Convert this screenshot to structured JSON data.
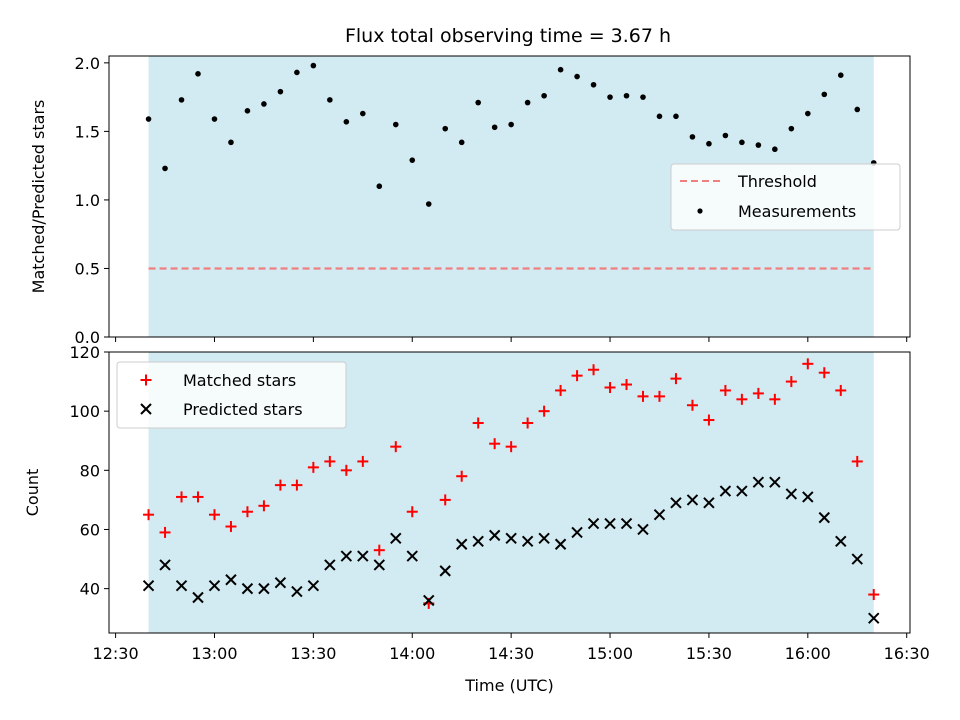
{
  "title": "Flux total observing time = 3.67 h",
  "xlabel": "Time (UTC)",
  "chart_data": [
    {
      "type": "scatter",
      "ylabel": "Matched/Predicted stars",
      "ylim": [
        0,
        2.05
      ],
      "yticks": [
        "0.0",
        "0.5",
        "1.0",
        "1.5",
        "2.0"
      ],
      "ytick_values": [
        0,
        0.5,
        1.0,
        1.5,
        2.0
      ],
      "observing_window": [
        "12:40",
        "16:20"
      ],
      "threshold": 0.5,
      "legend": {
        "placement": "center-right",
        "threshold_label": "Threshold",
        "measurements_label": "Measurements"
      },
      "colors": {
        "threshold": "#f08080",
        "measurements": "#000000",
        "window": "#add8e6"
      },
      "x": [
        "12:40",
        "12:45",
        "12:50",
        "12:55",
        "13:00",
        "13:05",
        "13:10",
        "13:15",
        "13:20",
        "13:25",
        "13:30",
        "13:35",
        "13:40",
        "13:45",
        "13:50",
        "13:55",
        "14:00",
        "14:05",
        "14:10",
        "14:15",
        "14:20",
        "14:25",
        "14:30",
        "14:35",
        "14:40",
        "14:45",
        "14:50",
        "14:55",
        "15:00",
        "15:05",
        "15:10",
        "15:15",
        "15:20",
        "15:25",
        "15:30",
        "15:35",
        "15:40",
        "15:45",
        "15:50",
        "15:55",
        "16:00",
        "16:05",
        "16:10",
        "16:15",
        "16:20"
      ],
      "values": [
        1.59,
        1.23,
        1.73,
        1.92,
        1.59,
        1.42,
        1.65,
        1.7,
        1.79,
        1.93,
        1.98,
        1.73,
        1.57,
        1.63,
        1.1,
        1.55,
        1.29,
        0.97,
        1.52,
        1.42,
        1.71,
        1.53,
        1.55,
        1.71,
        1.76,
        1.95,
        1.9,
        1.84,
        1.75,
        1.76,
        1.75,
        1.61,
        1.61,
        1.46,
        1.41,
        1.47,
        1.42,
        1.4,
        1.37,
        1.52,
        1.63,
        1.77,
        1.91,
        1.66,
        1.27
      ]
    },
    {
      "type": "scatter",
      "ylabel": "Count",
      "ylim": [
        25,
        120
      ],
      "yticks": [
        "40",
        "60",
        "80",
        "100",
        "120"
      ],
      "ytick_values": [
        40,
        60,
        80,
        100,
        120
      ],
      "observing_window": [
        "12:40",
        "16:20"
      ],
      "legend": {
        "placement": "upper-left"
      },
      "colors": {
        "matched": "#ff0000",
        "predicted": "#000000",
        "window": "#add8e6"
      },
      "xticks": [
        "12:30",
        "13:00",
        "13:30",
        "14:00",
        "14:30",
        "15:00",
        "15:30",
        "16:00",
        "16:30"
      ],
      "x": [
        "12:40",
        "12:45",
        "12:50",
        "12:55",
        "13:00",
        "13:05",
        "13:10",
        "13:15",
        "13:20",
        "13:25",
        "13:30",
        "13:35",
        "13:40",
        "13:45",
        "13:50",
        "13:55",
        "14:00",
        "14:05",
        "14:10",
        "14:15",
        "14:20",
        "14:25",
        "14:30",
        "14:35",
        "14:40",
        "14:45",
        "14:50",
        "14:55",
        "15:00",
        "15:05",
        "15:10",
        "15:15",
        "15:20",
        "15:25",
        "15:30",
        "15:35",
        "15:40",
        "15:45",
        "15:50",
        "15:55",
        "16:00",
        "16:05",
        "16:10",
        "16:15",
        "16:20"
      ],
      "series": [
        {
          "name": "Matched stars",
          "marker": "+",
          "values": [
            65,
            59,
            71,
            71,
            65,
            61,
            66,
            68,
            75,
            75,
            81,
            83,
            80,
            83,
            53,
            88,
            66,
            35,
            70,
            78,
            96,
            89,
            88,
            96,
            100,
            107,
            112,
            114,
            108,
            109,
            105,
            105,
            111,
            102,
            97,
            107,
            104,
            106,
            104,
            110,
            116,
            113,
            107,
            83,
            38
          ]
        },
        {
          "name": "Predicted stars",
          "marker": "x",
          "values": [
            41,
            48,
            41,
            37,
            41,
            43,
            40,
            40,
            42,
            39,
            41,
            48,
            51,
            51,
            48,
            57,
            51,
            36,
            46,
            55,
            56,
            58,
            57,
            56,
            57,
            55,
            59,
            62,
            62,
            62,
            60,
            65,
            69,
            70,
            69,
            73,
            73,
            76,
            76,
            72,
            71,
            64,
            56,
            50,
            30
          ]
        }
      ]
    }
  ]
}
